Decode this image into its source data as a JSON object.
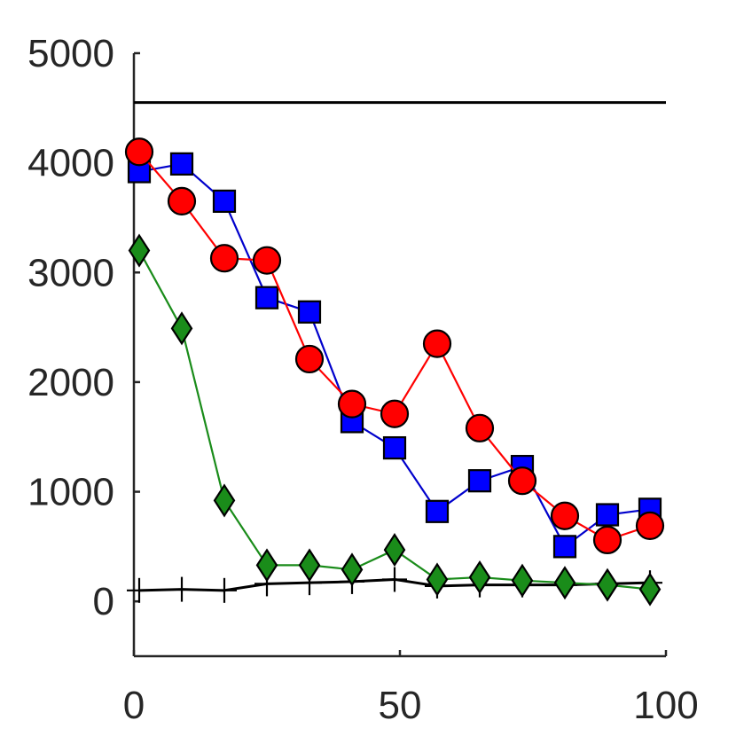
{
  "chart_data": {
    "type": "line",
    "title": "",
    "xlabel": "",
    "ylabel": "",
    "xlim": [
      0,
      100
    ],
    "ylim": [
      -500,
      5000
    ],
    "x_ticks": [
      "0",
      "50",
      "100"
    ],
    "y_ticks": [
      "0",
      "1000",
      "2000",
      "3000",
      "4000",
      "5000"
    ],
    "x_tick_values": [
      0,
      50,
      100
    ],
    "y_tick_values": [
      0,
      1000,
      2000,
      3000,
      4000,
      5000
    ],
    "grid": false,
    "reference_line": {
      "y": 4550,
      "color": "#000000"
    },
    "series": [
      {
        "marker": "square",
        "color": "#0000ff",
        "line_color": "#0000cc",
        "x": [
          1,
          9,
          17,
          25,
          33,
          41,
          49,
          57,
          65,
          73,
          81,
          89,
          97
        ],
        "y": [
          3920,
          3990,
          3650,
          2770,
          2640,
          1640,
          1400,
          820,
          1100,
          1230,
          500,
          790,
          840
        ]
      },
      {
        "marker": "circle",
        "color": "#ff0000",
        "line_color": "#ff0000",
        "x": [
          1,
          9,
          17,
          25,
          33,
          41,
          49,
          57,
          65,
          73,
          81,
          89,
          97
        ],
        "y": [
          4100,
          3650,
          3130,
          3110,
          2210,
          1800,
          1710,
          2350,
          1580,
          1100,
          780,
          560,
          690
        ]
      },
      {
        "marker": "diamond",
        "color": "#1a8c1a",
        "line_color": "#1a8c1a",
        "x": [
          1,
          9,
          17,
          25,
          33,
          41,
          49,
          57,
          65,
          73,
          81,
          89,
          97
        ],
        "y": [
          3200,
          2490,
          920,
          330,
          330,
          290,
          470,
          200,
          220,
          190,
          170,
          150,
          110
        ]
      },
      {
        "marker": "plus",
        "color": "#000000",
        "line_color": "#000000",
        "x": [
          1,
          9,
          17,
          25,
          33,
          41,
          49,
          57,
          65,
          73,
          81,
          89,
          97
        ],
        "y": [
          100,
          110,
          100,
          160,
          170,
          180,
          200,
          140,
          150,
          150,
          150,
          160,
          170
        ]
      }
    ]
  }
}
